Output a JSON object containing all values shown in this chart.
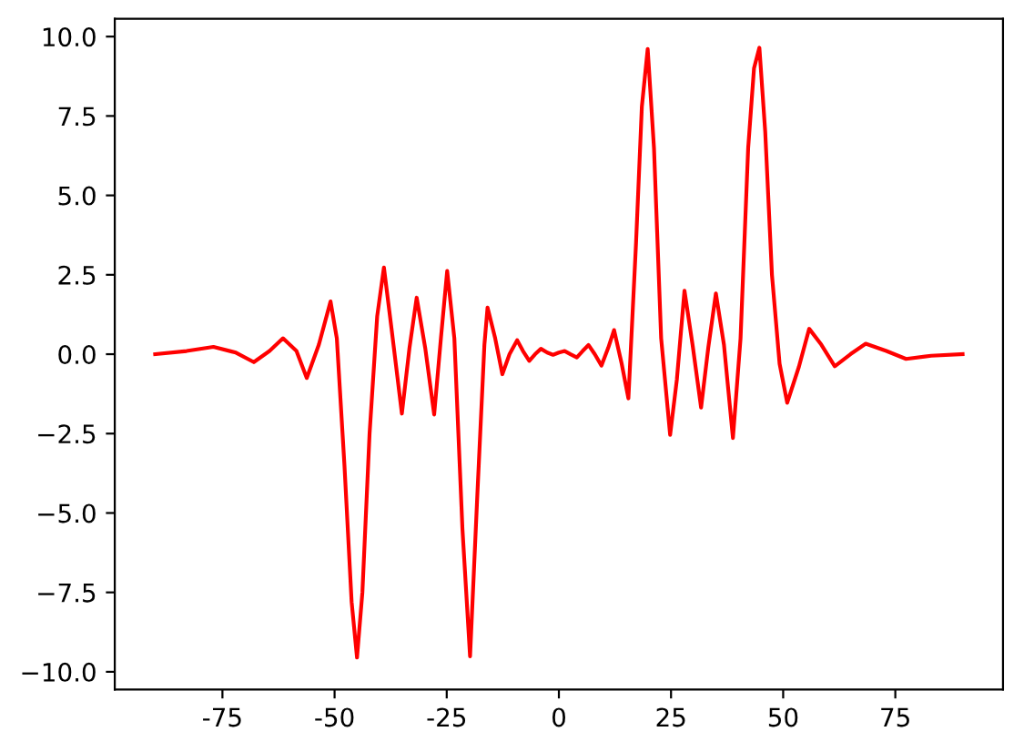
{
  "chart_data": {
    "type": "line",
    "xlim": [
      -99,
      99
    ],
    "ylim": [
      -10.56,
      10.56
    ],
    "xticks": [
      -75,
      -50,
      -25,
      0,
      25,
      50,
      75
    ],
    "yticks": [
      {
        "value": -10,
        "label": "−10.0"
      },
      {
        "value": -7.5,
        "label": "−7.5"
      },
      {
        "value": -5,
        "label": "−5.0"
      },
      {
        "value": -2.5,
        "label": "−2.5"
      },
      {
        "value": 0,
        "label": "0.0"
      },
      {
        "value": 2.5,
        "label": "2.5"
      },
      {
        "value": 5,
        "label": "5.0"
      },
      {
        "value": 7.5,
        "label": "7.5"
      },
      {
        "value": 10,
        "label": "10.0"
      }
    ],
    "grid": false,
    "series": [
      {
        "color": "#ff0000",
        "x": [
          -90,
          -83,
          -77,
          -72,
          -68,
          -64.5,
          -61.5,
          -58.5,
          -56.2,
          -53.5,
          -50.9,
          -49.5,
          -47.8,
          -46.2,
          -45,
          -43.8,
          -42.2,
          -40.5,
          -39,
          -37.3,
          -35,
          -33.3,
          -31.7,
          -29.8,
          -27.8,
          -26.3,
          -24.9,
          -23.3,
          -21.5,
          -19.8,
          -18.2,
          -16.6,
          -15.9,
          -14.2,
          -12.6,
          -11,
          -9.3,
          -8,
          -6.6,
          -5.3,
          -4,
          -2.6,
          -1.3,
          0,
          1.3,
          2.6,
          4,
          5.3,
          6.6,
          8,
          9.5,
          11,
          12.3,
          14,
          15.5,
          17.2,
          18.5,
          19.8,
          21.2,
          22.8,
          24.8,
          26.3,
          28,
          29.8,
          31.7,
          33.3,
          35,
          36.8,
          38.8,
          40.5,
          42.2,
          43.5,
          44.7,
          46,
          47.5,
          49.2,
          50.9,
          53.5,
          55.8,
          58.5,
          61.5,
          65,
          68.4,
          73,
          77.4,
          83,
          90
        ],
        "values": [
          0.0,
          0.1,
          0.23,
          0.05,
          -0.25,
          0.1,
          0.5,
          0.1,
          -0.75,
          0.3,
          1.66,
          0.5,
          -3.5,
          -7.8,
          -9.55,
          -7.5,
          -2.5,
          1.2,
          2.73,
          0.8,
          -1.87,
          0.2,
          1.78,
          0.2,
          -1.9,
          0.5,
          2.62,
          0.5,
          -5.5,
          -9.51,
          -4.5,
          0.3,
          1.47,
          0.5,
          -0.63,
          0.0,
          0.44,
          0.1,
          -0.21,
          0.0,
          0.17,
          0.05,
          -0.02,
          0.05,
          0.1,
          0.0,
          -0.1,
          0.1,
          0.29,
          0.0,
          -0.36,
          0.2,
          0.76,
          -0.3,
          -1.39,
          3.5,
          7.8,
          9.61,
          6.5,
          0.5,
          -2.54,
          -0.8,
          2.0,
          0.3,
          -1.68,
          0.2,
          1.91,
          0.3,
          -2.64,
          0.5,
          6.5,
          9.0,
          9.65,
          7.0,
          2.5,
          -0.3,
          -1.53,
          -0.4,
          0.8,
          0.3,
          -0.38,
          0.0,
          0.33,
          0.1,
          -0.15,
          -0.05,
          0.0
        ]
      }
    ]
  }
}
